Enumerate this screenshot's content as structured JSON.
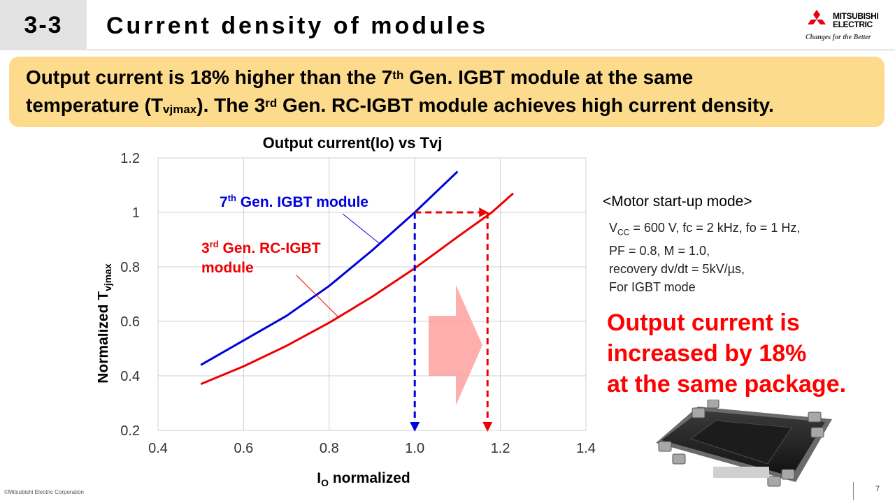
{
  "header": {
    "section_number": "3-3",
    "title": "Current density of modules",
    "logo_line1": "MITSUBISHI",
    "logo_line2": "ELECTRIC",
    "tagline": "Changes for the Better",
    "logo_color": "#e60012"
  },
  "headline": {
    "line1_part1": "Output current is 18% higher than the 7",
    "line1_sup": "th",
    "line1_part2": " Gen. IGBT module at the same",
    "line2_part1": "temperature (T",
    "line2_sub": "vjmax",
    "line2_part2": "). The 3",
    "line2_sup": "rd",
    "line2_part3": " Gen. RC-IGBT module achieves high current density.",
    "background": "#fddb8c"
  },
  "chart_data": {
    "type": "line",
    "title": "Output current(Io) vs Tvj",
    "xlabel_main": "I",
    "xlabel_sub": "O",
    "xlabel_rest": " normalized",
    "ylabel_main": "Normalized T",
    "ylabel_sub": "vjmax",
    "xlim": [
      0.4,
      1.4
    ],
    "ylim": [
      0.2,
      1.2
    ],
    "x_ticks": [
      0.4,
      0.6,
      0.8,
      1.0,
      1.2,
      1.4
    ],
    "x_tick_labels": [
      "0.4",
      "0.6",
      "0.8",
      "1.0",
      "1.2",
      "1.4"
    ],
    "y_ticks": [
      0.2,
      0.4,
      0.6,
      0.8,
      1.0,
      1.2
    ],
    "y_tick_labels": [
      "0.2",
      "0.4",
      "0.6",
      "0.8",
      "1",
      "1.2"
    ],
    "grid": true,
    "series": [
      {
        "name": "7th Gen. IGBT module",
        "label_main": "7",
        "label_sup": "th",
        "label_rest": " Gen. IGBT module",
        "color": "#0000dd",
        "x": [
          0.5,
          0.6,
          0.7,
          0.8,
          0.9,
          1.0,
          1.1
        ],
        "y": [
          0.44,
          0.53,
          0.62,
          0.73,
          0.86,
          1.0,
          1.15
        ]
      },
      {
        "name": "3rd Gen. RC-IGBT module",
        "label_main": "3",
        "label_sup": "rd",
        "label_rest": " Gen. RC-IGBT",
        "label_line2": "module",
        "color": "#ee0000",
        "x": [
          0.5,
          0.6,
          0.7,
          0.8,
          0.9,
          1.0,
          1.1,
          1.18,
          1.23
        ],
        "y": [
          0.37,
          0.435,
          0.51,
          0.595,
          0.69,
          0.795,
          0.91,
          1.0,
          1.07
        ]
      }
    ],
    "reference_lines": {
      "blue_x": 1.0,
      "red_x": 1.17,
      "y": 1.0
    }
  },
  "notes": {
    "mode": "<Motor start-up mode>",
    "cond_line1_pre": "V",
    "cond_line1_sub": "CC",
    "cond_line1_post": " = 600 V, fc = 2 kHz, fo = 1 Hz,",
    "cond_line2": "PF = 0.8, M = 1.0,",
    "cond_line3": "recovery dv/dt = 5kV/µs,",
    "cond_line4": "For IGBT mode"
  },
  "highlight": {
    "line1": "Output current is",
    "line2": "increased by 18%",
    "line3": "at the same package.",
    "color": "#ff0000"
  },
  "footer": {
    "copyright": "©Mitsubishi Electric Corporation",
    "page_number": "7"
  }
}
